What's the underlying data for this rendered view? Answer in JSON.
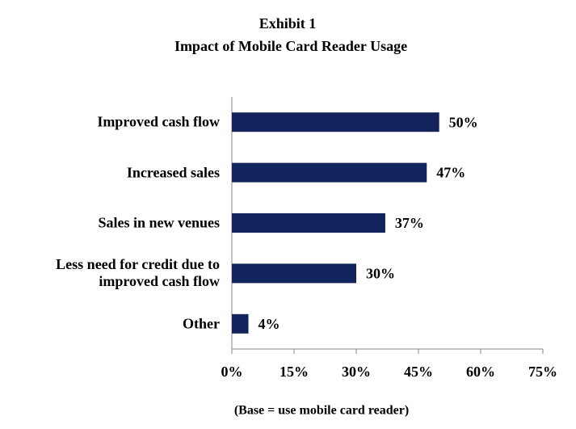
{
  "chart_data": {
    "type": "bar",
    "orientation": "horizontal",
    "title": "Exhibit 1",
    "subtitle": "Impact of Mobile Card Reader Usage",
    "categories": [
      "Improved cash flow",
      "Increased sales",
      "Sales in new venues",
      "Less need for credit due to improved cash flow",
      "Other"
    ],
    "values": [
      50,
      47,
      37,
      30,
      4
    ],
    "value_labels": [
      "50%",
      "47%",
      "37%",
      "30%",
      "4%"
    ],
    "color": "#13235b",
    "xlim": [
      0,
      75
    ],
    "xticks": [
      {
        "value": 0,
        "label": "0%"
      },
      {
        "value": 15,
        "label": "15%"
      },
      {
        "value": 30,
        "label": "30%"
      },
      {
        "value": 45,
        "label": "45%"
      },
      {
        "value": 60,
        "label": "60%"
      },
      {
        "value": 75,
        "label": "75%"
      }
    ],
    "xlabel": "(Base = use mobile card reader)",
    "grid": false
  }
}
